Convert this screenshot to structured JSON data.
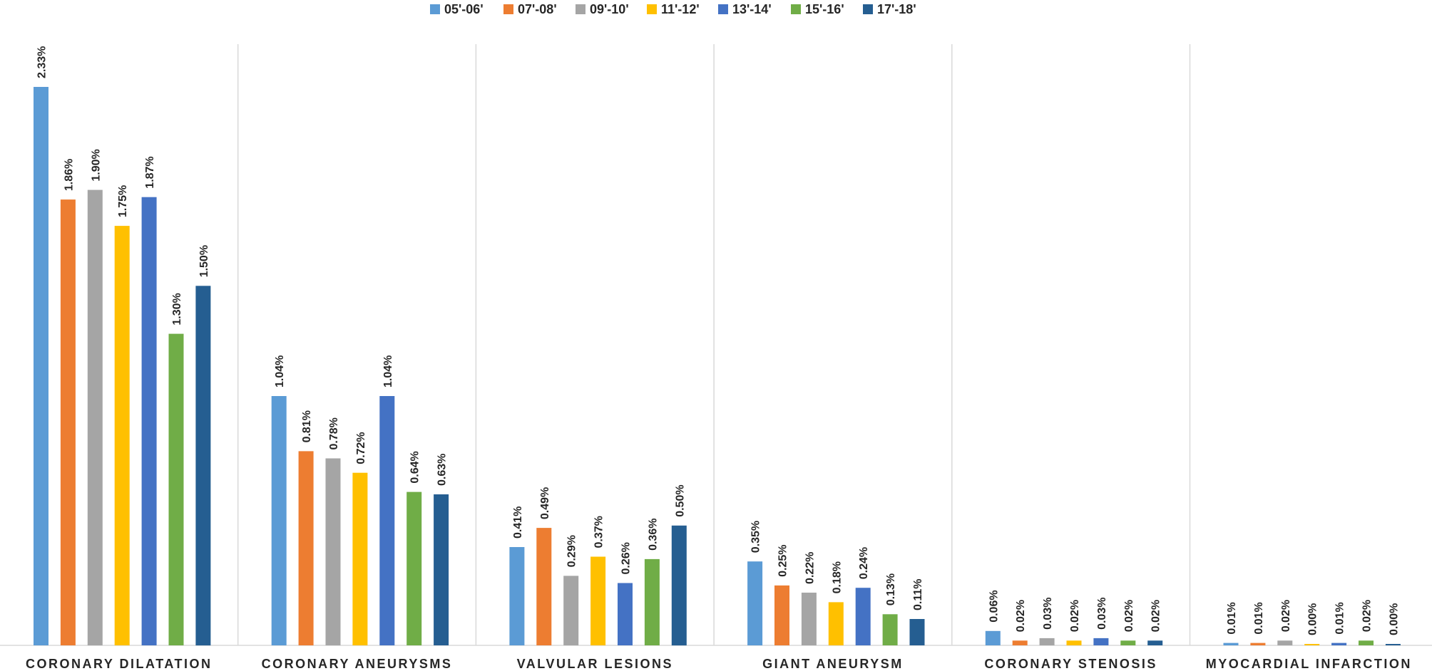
{
  "chart_data": {
    "type": "bar",
    "title": "",
    "xlabel": "",
    "ylabel": "",
    "ylim": [
      0,
      2.5
    ],
    "grid": false,
    "legend_position": "top",
    "categories": [
      "CORONARY DILATATION",
      "CORONARY ANEURYSMS",
      "VALVULAR LESIONS",
      "GIANT ANEURYSM",
      "CORONARY STENOSIS",
      "MYOCARDIAL INFARCTION"
    ],
    "series": [
      {
        "name": "05'-06'",
        "color": "#5B9BD5",
        "values": [
          2.33,
          1.04,
          0.41,
          0.35,
          0.06,
          0.01
        ],
        "labels": [
          "2.33%",
          "1.04%",
          "0.41%",
          "0.35%",
          "0.06%",
          "0.01%"
        ]
      },
      {
        "name": "07'-08'",
        "color": "#ED7D31",
        "values": [
          1.86,
          0.81,
          0.49,
          0.25,
          0.02,
          0.01
        ],
        "labels": [
          "1.86%",
          "0.81%",
          "0.49%",
          "0.25%",
          "0.02%",
          "0.01%"
        ]
      },
      {
        "name": "09'-10'",
        "color": "#A5A5A5",
        "values": [
          1.9,
          0.78,
          0.29,
          0.22,
          0.03,
          0.02
        ],
        "labels": [
          "1.90%",
          "0.78%",
          "0.29%",
          "0.22%",
          "0.03%",
          "0.02%"
        ]
      },
      {
        "name": "11'-12'",
        "color": "#FFC000",
        "values": [
          1.75,
          0.72,
          0.37,
          0.18,
          0.02,
          0.0
        ],
        "labels": [
          "1.75%",
          "0.72%",
          "0.37%",
          "0.18%",
          "0.02%",
          "0.00%"
        ]
      },
      {
        "name": "13'-14'",
        "color": "#4472C4",
        "values": [
          1.87,
          1.04,
          0.26,
          0.24,
          0.03,
          0.01
        ],
        "labels": [
          "1.87%",
          "1.04%",
          "0.26%",
          "0.24%",
          "0.03%",
          "0.01%"
        ]
      },
      {
        "name": "15'-16'",
        "color": "#70AD47",
        "values": [
          1.3,
          0.64,
          0.36,
          0.13,
          0.02,
          0.02
        ],
        "labels": [
          "1.30%",
          "0.64%",
          "0.36%",
          "0.13%",
          "0.02%",
          "0.02%"
        ]
      },
      {
        "name": "17'-18'",
        "color": "#255E91",
        "values": [
          1.5,
          0.63,
          0.5,
          0.11,
          0.02,
          0.0
        ],
        "labels": [
          "1.50%",
          "0.63%",
          "0.50%",
          "0.11%",
          "0.02%",
          "0.00%"
        ]
      }
    ]
  }
}
